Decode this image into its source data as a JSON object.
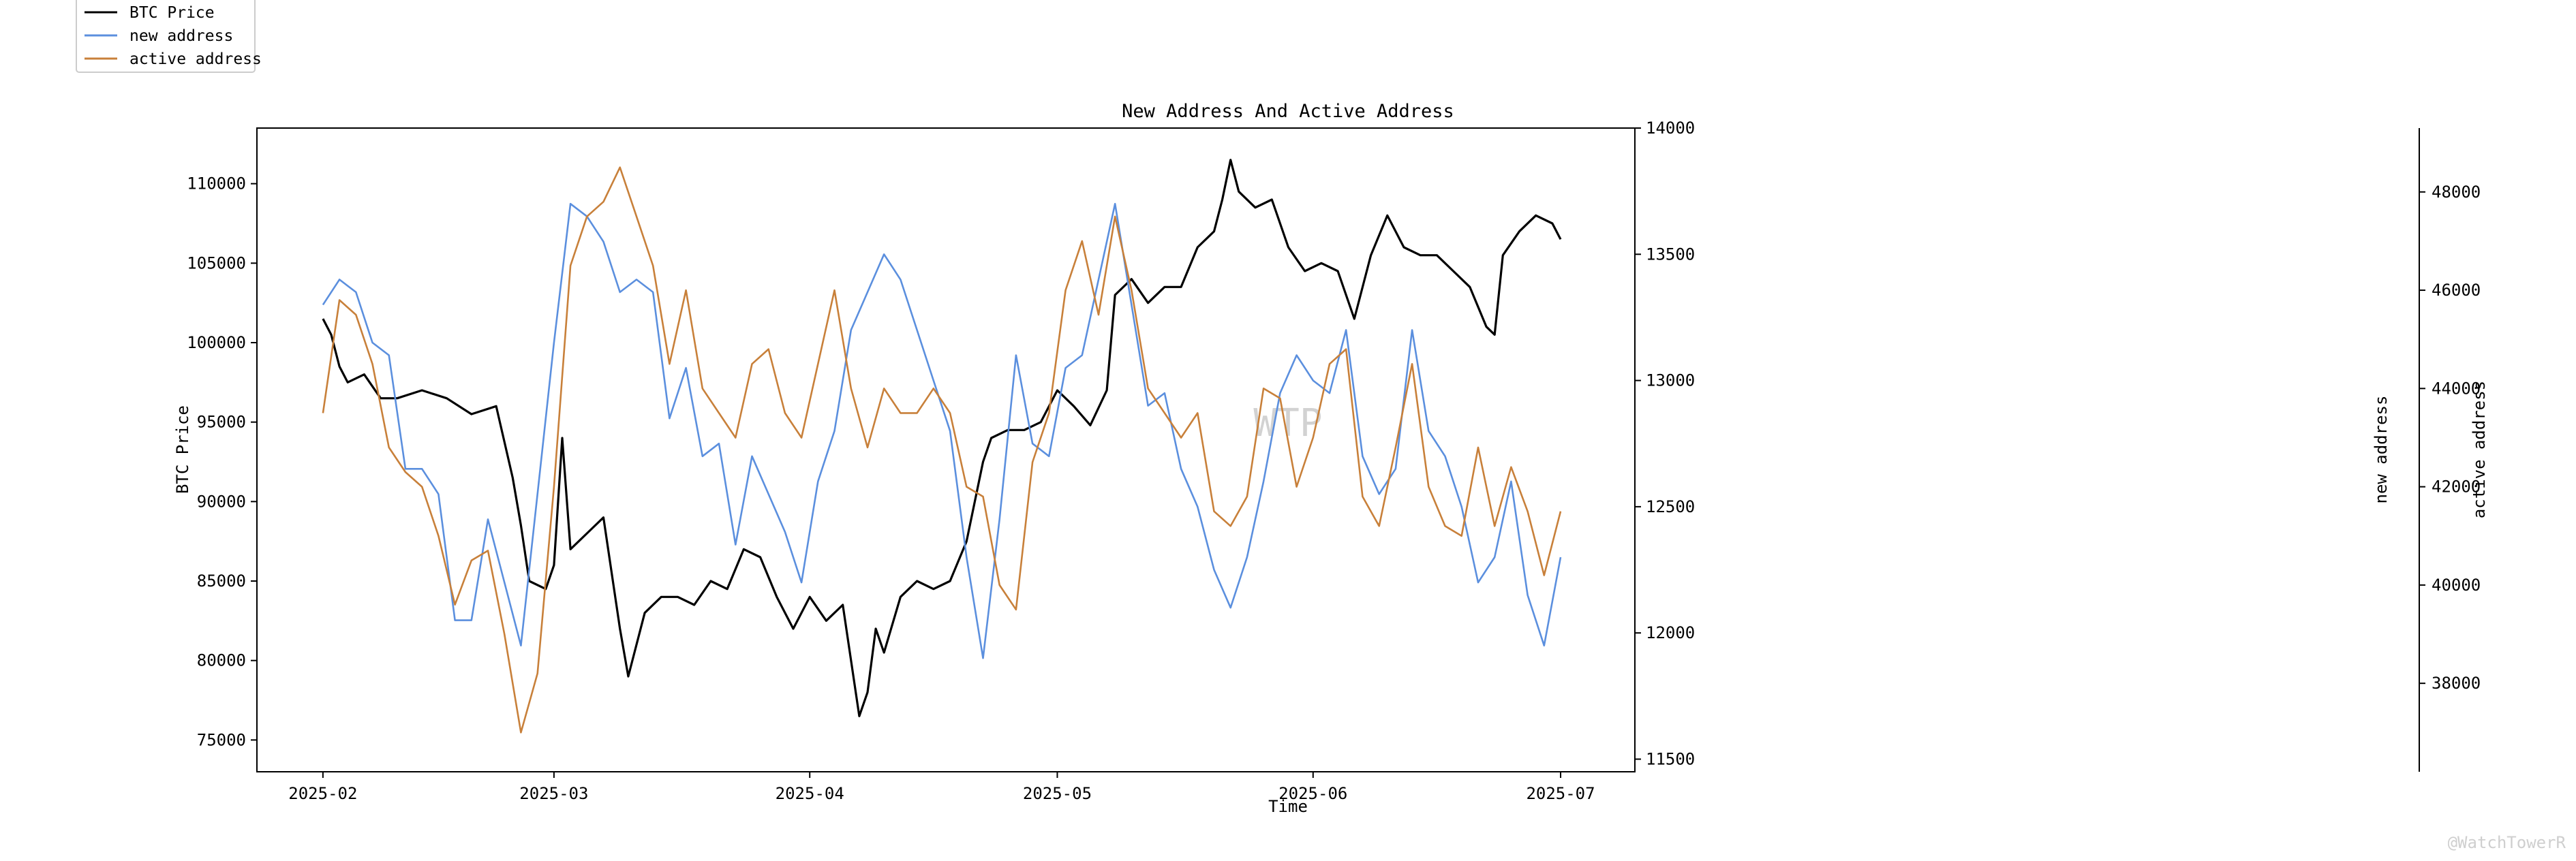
{
  "chart_data": {
    "type": "line",
    "title": "New Address And Active Address",
    "xlabel": "Time",
    "x_ticks": [
      "2025-02",
      "2025-03",
      "2025-04",
      "2025-05",
      "2025-06",
      "2025-07"
    ],
    "x_range": [
      "2025-01-24",
      "2025-07-10"
    ],
    "grid": false,
    "legend_position": "top-left, outside plot",
    "watermark_center": "WTP",
    "watermark_corner": "@WatchTowerR",
    "axes": [
      {
        "id": "left",
        "label": "BTC Price",
        "ylim": [
          73000,
          113500
        ],
        "ticks": [
          75000,
          80000,
          85000,
          90000,
          95000,
          100000,
          105000,
          110000
        ]
      },
      {
        "id": "right1",
        "label": "new address",
        "ylim": [
          11450,
          14000
        ],
        "ticks": [
          11500,
          12000,
          12500,
          13000,
          13500,
          14000
        ]
      },
      {
        "id": "right2",
        "label": "active address",
        "ylim": [
          36200,
          49300
        ],
        "ticks": [
          38000,
          40000,
          42000,
          44000,
          46000,
          48000
        ]
      }
    ],
    "series": [
      {
        "name": "BTC Price",
        "axis": "left",
        "color": "#000000",
        "x": [
          "2025-02-01",
          "2025-02-02",
          "2025-02-03",
          "2025-02-04",
          "2025-02-06",
          "2025-02-08",
          "2025-02-10",
          "2025-02-13",
          "2025-02-16",
          "2025-02-19",
          "2025-02-22",
          "2025-02-24",
          "2025-02-25",
          "2025-02-26",
          "2025-02-28",
          "2025-03-01",
          "2025-03-02",
          "2025-03-03",
          "2025-03-05",
          "2025-03-07",
          "2025-03-09",
          "2025-03-10",
          "2025-03-12",
          "2025-03-14",
          "2025-03-16",
          "2025-03-18",
          "2025-03-20",
          "2025-03-22",
          "2025-03-24",
          "2025-03-26",
          "2025-03-28",
          "2025-03-30",
          "2025-04-01",
          "2025-04-03",
          "2025-04-05",
          "2025-04-07",
          "2025-04-08",
          "2025-04-09",
          "2025-04-10",
          "2025-04-12",
          "2025-04-14",
          "2025-04-16",
          "2025-04-18",
          "2025-04-20",
          "2025-04-22",
          "2025-04-23",
          "2025-04-25",
          "2025-04-27",
          "2025-04-29",
          "2025-05-01",
          "2025-05-03",
          "2025-05-05",
          "2025-05-07",
          "2025-05-08",
          "2025-05-10",
          "2025-05-12",
          "2025-05-14",
          "2025-05-16",
          "2025-05-18",
          "2025-05-20",
          "2025-05-21",
          "2025-05-22",
          "2025-05-23",
          "2025-05-25",
          "2025-05-27",
          "2025-05-29",
          "2025-05-31",
          "2025-06-02",
          "2025-06-04",
          "2025-06-06",
          "2025-06-08",
          "2025-06-10",
          "2025-06-12",
          "2025-06-14",
          "2025-06-16",
          "2025-06-18",
          "2025-06-20",
          "2025-06-22",
          "2025-06-23",
          "2025-06-24",
          "2025-06-26",
          "2025-06-28",
          "2025-06-30",
          "2025-07-01"
        ],
        "values": [
          101500,
          100500,
          98500,
          97500,
          98000,
          96500,
          96500,
          97000,
          96500,
          95500,
          96000,
          91500,
          88500,
          85000,
          84500,
          86000,
          94000,
          87000,
          88000,
          89000,
          82000,
          79000,
          83000,
          84000,
          84000,
          83500,
          85000,
          84500,
          87000,
          86500,
          84000,
          82000,
          84000,
          82500,
          83500,
          76500,
          78000,
          82000,
          80500,
          84000,
          85000,
          84500,
          85000,
          87500,
          92500,
          94000,
          94500,
          94500,
          95000,
          97000,
          96000,
          94800,
          97000,
          103000,
          104000,
          102500,
          103500,
          103500,
          106000,
          107000,
          109000,
          111500,
          109500,
          108500,
          109000,
          106000,
          104500,
          105000,
          104500,
          101500,
          105500,
          108000,
          106000,
          105500,
          105500,
          104500,
          103500,
          101000,
          100500,
          105500,
          107000,
          108000,
          107500,
          106500
        ]
      },
      {
        "name": "new address",
        "axis": "right1",
        "color": "#5b8fde",
        "x": [
          "2025-02-01",
          "2025-02-03",
          "2025-02-05",
          "2025-02-07",
          "2025-02-09",
          "2025-02-11",
          "2025-02-13",
          "2025-02-15",
          "2025-02-17",
          "2025-02-19",
          "2025-02-21",
          "2025-02-23",
          "2025-02-25",
          "2025-02-27",
          "2025-03-01",
          "2025-03-03",
          "2025-03-05",
          "2025-03-07",
          "2025-03-09",
          "2025-03-11",
          "2025-03-13",
          "2025-03-15",
          "2025-03-17",
          "2025-03-19",
          "2025-03-21",
          "2025-03-23",
          "2025-03-25",
          "2025-03-27",
          "2025-03-29",
          "2025-03-31",
          "2025-04-02",
          "2025-04-04",
          "2025-04-06",
          "2025-04-08",
          "2025-04-10",
          "2025-04-12",
          "2025-04-14",
          "2025-04-16",
          "2025-04-18",
          "2025-04-20",
          "2025-04-22",
          "2025-04-24",
          "2025-04-26",
          "2025-04-28",
          "2025-04-30",
          "2025-05-02",
          "2025-05-04",
          "2025-05-06",
          "2025-05-08",
          "2025-05-10",
          "2025-05-12",
          "2025-05-14",
          "2025-05-16",
          "2025-05-18",
          "2025-05-20",
          "2025-05-22",
          "2025-05-24",
          "2025-05-26",
          "2025-05-28",
          "2025-05-30",
          "2025-06-01",
          "2025-06-03",
          "2025-06-05",
          "2025-06-07",
          "2025-06-09",
          "2025-06-11",
          "2025-06-13",
          "2025-06-15",
          "2025-06-17",
          "2025-06-19",
          "2025-06-21",
          "2025-06-23",
          "2025-06-25",
          "2025-06-27",
          "2025-06-29",
          "2025-07-01"
        ],
        "values": [
          13300,
          13400,
          13350,
          13150,
          13100,
          12650,
          12650,
          12550,
          12050,
          12050,
          12450,
          12200,
          11950,
          12550,
          13150,
          13700,
          13650,
          13550,
          13350,
          13400,
          13350,
          12850,
          13050,
          12700,
          12750,
          12350,
          12700,
          12550,
          12400,
          12200,
          12600,
          12800,
          13200,
          13350,
          13500,
          13400,
          13200,
          13000,
          12800,
          12300,
          11900,
          12450,
          13100,
          12750,
          12700,
          13050,
          13100,
          13400,
          13700,
          13300,
          12900,
          12950,
          12650,
          12500,
          12250,
          12100,
          12300,
          12600,
          12950,
          13100,
          13000,
          12950,
          13200,
          12700,
          12550,
          12650,
          13200,
          12800,
          12700,
          12500,
          12200,
          12300,
          12600,
          12150,
          11950,
          12300
        ]
      },
      {
        "name": "active address",
        "axis": "right2",
        "color": "#c8803a",
        "x": [
          "2025-02-01",
          "2025-02-03",
          "2025-02-05",
          "2025-02-07",
          "2025-02-09",
          "2025-02-11",
          "2025-02-13",
          "2025-02-15",
          "2025-02-17",
          "2025-02-19",
          "2025-02-21",
          "2025-02-23",
          "2025-02-25",
          "2025-02-27",
          "2025-03-01",
          "2025-03-03",
          "2025-03-05",
          "2025-03-07",
          "2025-03-09",
          "2025-03-11",
          "2025-03-13",
          "2025-03-15",
          "2025-03-17",
          "2025-03-19",
          "2025-03-21",
          "2025-03-23",
          "2025-03-25",
          "2025-03-27",
          "2025-03-29",
          "2025-03-31",
          "2025-04-02",
          "2025-04-04",
          "2025-04-06",
          "2025-04-08",
          "2025-04-10",
          "2025-04-12",
          "2025-04-14",
          "2025-04-16",
          "2025-04-18",
          "2025-04-20",
          "2025-04-22",
          "2025-04-24",
          "2025-04-26",
          "2025-04-28",
          "2025-04-30",
          "2025-05-02",
          "2025-05-04",
          "2025-05-06",
          "2025-05-08",
          "2025-05-10",
          "2025-05-12",
          "2025-05-14",
          "2025-05-16",
          "2025-05-18",
          "2025-05-20",
          "2025-05-22",
          "2025-05-24",
          "2025-05-26",
          "2025-05-28",
          "2025-05-30",
          "2025-06-01",
          "2025-06-03",
          "2025-06-05",
          "2025-06-07",
          "2025-06-09",
          "2025-06-11",
          "2025-06-13",
          "2025-06-15",
          "2025-06-17",
          "2025-06-19",
          "2025-06-21",
          "2025-06-23",
          "2025-06-25",
          "2025-06-27",
          "2025-06-29",
          "2025-07-01"
        ],
        "values": [
          43500,
          45800,
          45500,
          44500,
          42800,
          42300,
          42000,
          41000,
          39600,
          40500,
          40700,
          39000,
          37000,
          38200,
          42000,
          46500,
          47500,
          47800,
          48500,
          47500,
          46500,
          44500,
          46000,
          44000,
          43500,
          43000,
          44500,
          44800,
          43500,
          43000,
          44500,
          46000,
          44000,
          42800,
          44000,
          43500,
          43500,
          44000,
          43500,
          42000,
          41800,
          40000,
          39500,
          42500,
          43500,
          46000,
          47000,
          45500,
          47500,
          46000,
          44000,
          43500,
          43000,
          43500,
          41500,
          41200,
          41800,
          44000,
          43800,
          42000,
          43000,
          44500,
          44800,
          41800,
          41200,
          42800,
          44500,
          42000,
          41200,
          41000,
          42800,
          41200,
          42400,
          41500,
          40200,
          41500
        ]
      }
    ]
  }
}
